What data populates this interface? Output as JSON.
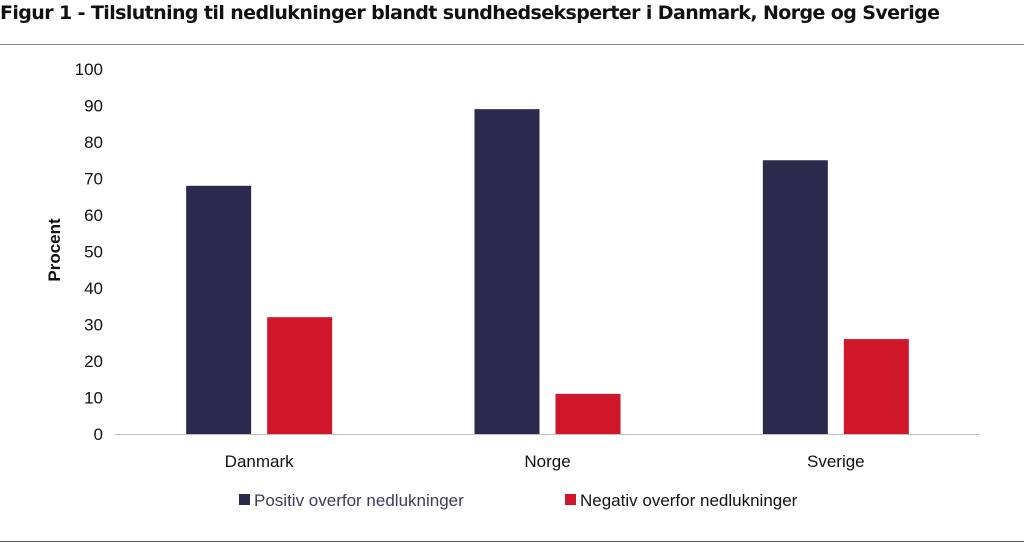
{
  "figure": {
    "title": "Figur 1 -  Tilslutning til nedlukninger blandt sundhedseksperter i Danmark, Norge og Sverige"
  },
  "chart_data": {
    "type": "bar",
    "categories": [
      "Danmark",
      "Norge",
      "Sverige"
    ],
    "series": [
      {
        "name": "Positiv overfor nedlukninger",
        "values": [
          68,
          89,
          75
        ],
        "color": "#2b2a4c"
      },
      {
        "name": "Negativ overfor nedlukninger",
        "values": [
          32,
          11,
          26
        ],
        "color": "#d0172a"
      }
    ],
    "title": "",
    "xlabel": "",
    "ylabel": "Procent",
    "ylim": [
      0,
      100
    ],
    "yticks": [
      0,
      10,
      20,
      30,
      40,
      50,
      60,
      70,
      80,
      90,
      100
    ],
    "grid": false,
    "legend_position": "bottom"
  }
}
